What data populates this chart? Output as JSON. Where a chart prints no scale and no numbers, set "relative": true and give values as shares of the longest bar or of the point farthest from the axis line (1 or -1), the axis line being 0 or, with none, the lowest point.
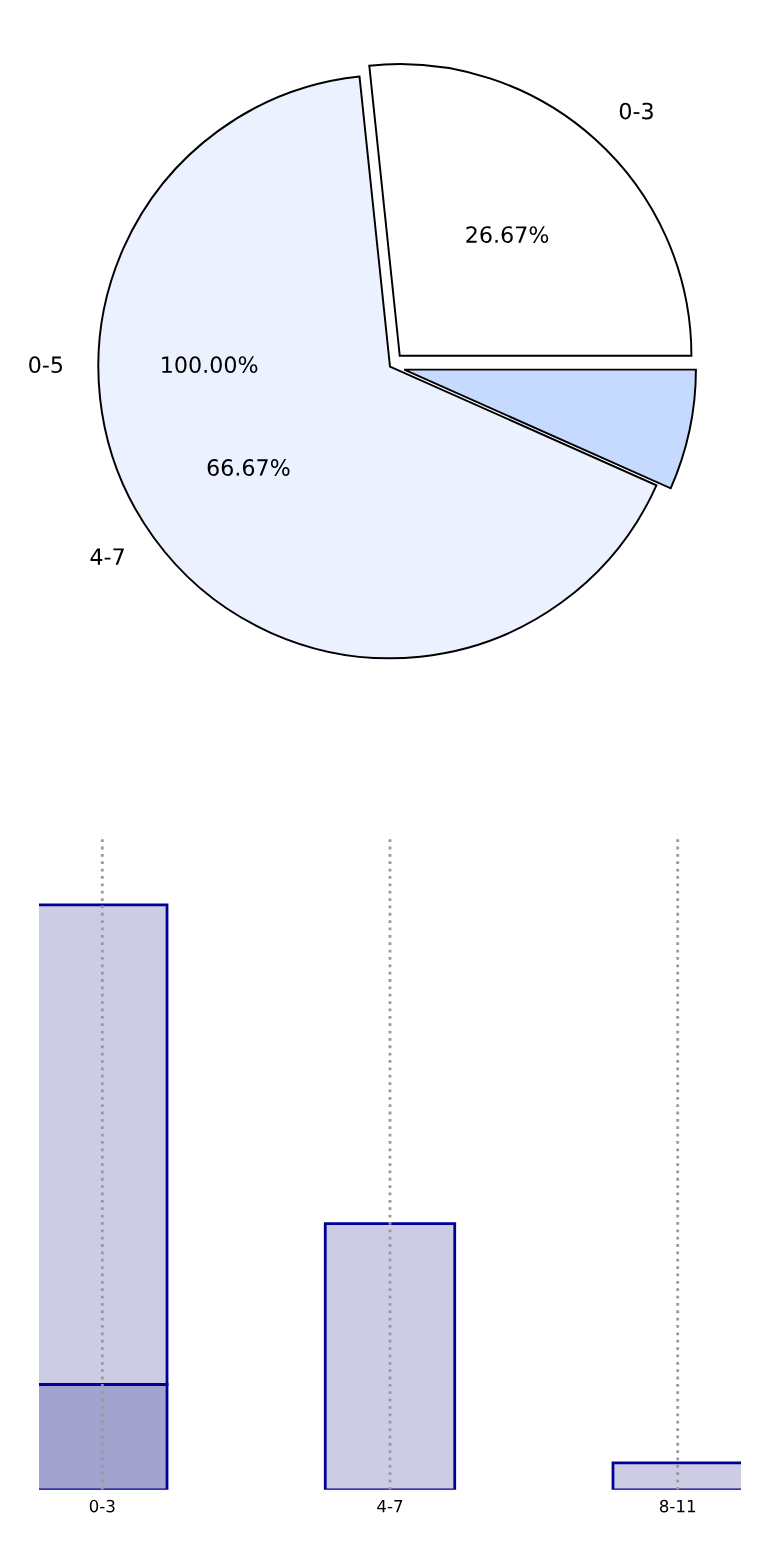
{
  "chart_data": [
    {
      "type": "pie",
      "categories": [
        "0-3",
        null,
        "4-7"
      ],
      "values": [
        26.67,
        6.67,
        66.67
      ],
      "colors": [
        "#ffffff",
        "#c6d9ff",
        "#ebf1fe"
      ],
      "value_labels": [
        "26.67%",
        null,
        "66.67%"
      ],
      "annotations": [
        "0-5",
        "100.00%"
      ]
    },
    {
      "type": "bar",
      "categories": [
        "0-3",
        "4-7",
        "8-11"
      ],
      "relative": true,
      "stacked": true,
      "grid": "x",
      "series": [
        {
          "color": "#a3a3d0",
          "values": [
            0.18,
            null,
            null
          ]
        },
        {
          "color": "#cccce4",
          "values": [
            0.82,
            0.455,
            0.046
          ]
        }
      ]
    }
  ]
}
